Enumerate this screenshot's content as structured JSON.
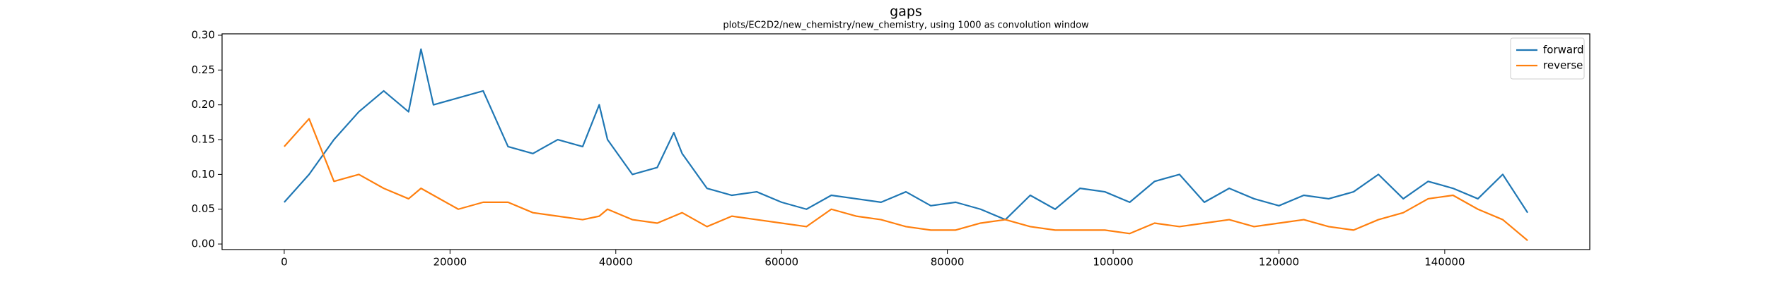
{
  "chart_data": {
    "type": "line",
    "title": "gaps",
    "subtitle": "plots/EC2D2/new_chemistry/new_chemistry, using 1000 as convolution window",
    "x": [
      0,
      3000,
      6000,
      9000,
      12000,
      15000,
      16500,
      18000,
      21000,
      24000,
      27000,
      30000,
      33000,
      36000,
      38000,
      39000,
      42000,
      45000,
      47000,
      48000,
      51000,
      54000,
      57000,
      60000,
      63000,
      66000,
      69000,
      72000,
      75000,
      78000,
      81000,
      84000,
      87000,
      90000,
      93000,
      96000,
      99000,
      102000,
      105000,
      108000,
      111000,
      114000,
      117000,
      120000,
      123000,
      126000,
      129000,
      132000,
      135000,
      138000,
      141000,
      144000,
      147000,
      150000
    ],
    "series": [
      {
        "name": "forward",
        "color": "#1f77b4",
        "values": [
          0.06,
          0.1,
          0.15,
          0.19,
          0.22,
          0.19,
          0.28,
          0.2,
          0.21,
          0.22,
          0.14,
          0.13,
          0.15,
          0.14,
          0.2,
          0.15,
          0.1,
          0.11,
          0.16,
          0.13,
          0.08,
          0.07,
          0.075,
          0.06,
          0.05,
          0.07,
          0.065,
          0.06,
          0.075,
          0.055,
          0.06,
          0.05,
          0.035,
          0.07,
          0.05,
          0.08,
          0.075,
          0.06,
          0.09,
          0.1,
          0.06,
          0.08,
          0.065,
          0.055,
          0.07,
          0.065,
          0.075,
          0.1,
          0.065,
          0.09,
          0.08,
          0.065,
          0.1,
          0.045
        ]
      },
      {
        "name": "reverse",
        "color": "#ff7f0e",
        "values": [
          0.14,
          0.18,
          0.09,
          0.1,
          0.08,
          0.065,
          0.08,
          0.07,
          0.05,
          0.06,
          0.06,
          0.045,
          0.04,
          0.035,
          0.04,
          0.05,
          0.035,
          0.03,
          0.04,
          0.045,
          0.025,
          0.04,
          0.035,
          0.03,
          0.025,
          0.05,
          0.04,
          0.035,
          0.025,
          0.02,
          0.02,
          0.03,
          0.035,
          0.025,
          0.02,
          0.02,
          0.02,
          0.015,
          0.03,
          0.025,
          0.03,
          0.035,
          0.025,
          0.03,
          0.035,
          0.025,
          0.02,
          0.035,
          0.045,
          0.065,
          0.07,
          0.05,
          0.035,
          0.005
        ]
      }
    ],
    "xlim": [
      -7500,
      157500
    ],
    "ylim": [
      -0.008,
      0.302
    ],
    "xticks": [
      0,
      20000,
      40000,
      60000,
      80000,
      100000,
      120000,
      140000
    ],
    "yticks": [
      {
        "value": 0,
        "label": "0.00"
      },
      {
        "value": 0.05,
        "label": "0.05"
      },
      {
        "value": 0.1,
        "label": "0.10"
      },
      {
        "value": 0.15,
        "label": "0.15"
      },
      {
        "value": 0.2,
        "label": "0.20"
      },
      {
        "value": 0.25,
        "label": "0.25"
      },
      {
        "value": 0.3,
        "label": "0.30"
      }
    ],
    "legend": "upper right"
  }
}
